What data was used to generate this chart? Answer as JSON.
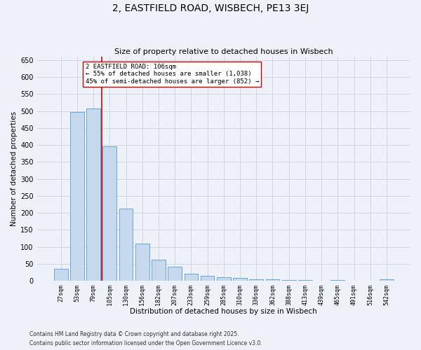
{
  "title": "2, EASTFIELD ROAD, WISBECH, PE13 3EJ",
  "subtitle": "Size of property relative to detached houses in Wisbech",
  "xlabel": "Distribution of detached houses by size in Wisbech",
  "ylabel": "Number of detached properties",
  "categories": [
    "27sqm",
    "53sqm",
    "79sqm",
    "105sqm",
    "130sqm",
    "156sqm",
    "182sqm",
    "207sqm",
    "233sqm",
    "259sqm",
    "285sqm",
    "310sqm",
    "336sqm",
    "362sqm",
    "388sqm",
    "413sqm",
    "439sqm",
    "465sqm",
    "491sqm",
    "516sqm",
    "542sqm"
  ],
  "values": [
    35,
    498,
    508,
    397,
    212,
    110,
    61,
    42,
    21,
    14,
    10,
    8,
    5,
    4,
    1,
    1,
    0,
    1,
    0,
    0,
    4
  ],
  "bar_color": "#c5d8ec",
  "bar_edge_color": "#5b9bd5",
  "grid_color": "#c8d0e0",
  "vline_color": "#cc0000",
  "annotation_text": "2 EASTFIELD ROAD: 106sqm\n← 55% of detached houses are smaller (1,038)\n45% of semi-detached houses are larger (852) →",
  "annotation_box_color": "#ffffff",
  "annotation_box_edge": "#cc0000",
  "ylim": [
    0,
    660
  ],
  "yticks": [
    0,
    50,
    100,
    150,
    200,
    250,
    300,
    350,
    400,
    450,
    500,
    550,
    600,
    650
  ],
  "footer_line1": "Contains HM Land Registry data © Crown copyright and database right 2025.",
  "footer_line2": "Contains public sector information licensed under the Open Government Licence v3.0.",
  "background_color": "#eef2f8"
}
